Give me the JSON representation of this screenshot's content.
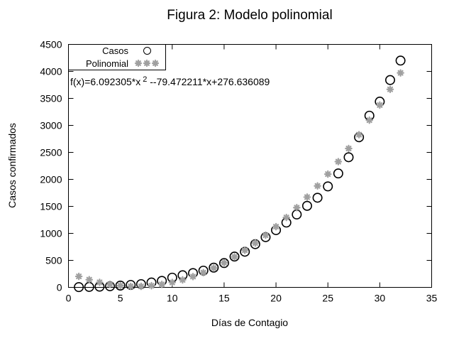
{
  "figure": {
    "title": "Figura 2: Modelo polinomial",
    "xlabel": "Días de Contagio",
    "ylabel": "Casos confirmados",
    "equation": {
      "prefix": "f(x)=6.092305*x",
      "sup": "2",
      "suffix": "--79.472211*x+276.636089"
    }
  },
  "legend": {
    "casos_label": "Casos",
    "polinomial_label": "Polinomial"
  },
  "colors": {
    "foreground": "#000000",
    "polinomial_marker": "#a0a0a0",
    "background": "#ffffff"
  },
  "chart_data": {
    "type": "scatter",
    "title": "Figura 2: Modelo polinomial",
    "xlabel": "Días de Contagio",
    "ylabel": "Casos confirmados",
    "annotation": "f(x)=6.092305*x^2 --79.472211*x+276.636089",
    "legend_position": "top-left",
    "grid": false,
    "xlim": [
      0,
      35
    ],
    "ylim": [
      0,
      4500
    ],
    "xticks": [
      0,
      5,
      10,
      15,
      20,
      25,
      30,
      35
    ],
    "yticks": [
      0,
      500,
      1000,
      1500,
      2000,
      2500,
      3000,
      3500,
      4000,
      4500
    ],
    "x": [
      1,
      2,
      3,
      4,
      5,
      6,
      7,
      8,
      9,
      10,
      11,
      12,
      13,
      14,
      15,
      16,
      17,
      18,
      19,
      20,
      21,
      22,
      23,
      24,
      25,
      26,
      27,
      28,
      29,
      30,
      31,
      32
    ],
    "series": [
      {
        "name": "Casos",
        "marker": "circle",
        "color": "#000000",
        "values": [
          5,
          8,
          13,
          20,
          33,
          45,
          60,
          90,
          120,
          180,
          225,
          265,
          310,
          365,
          450,
          570,
          660,
          800,
          930,
          1060,
          1200,
          1350,
          1510,
          1660,
          1870,
          2110,
          2410,
          2780,
          3180,
          3440,
          3840,
          4200
        ]
      },
      {
        "name": "Polinomial",
        "marker": "asterisk",
        "color": "#a0a0a0",
        "values": [
          203.3,
          142.1,
          93.1,
          56.2,
          31.6,
          19.1,
          18.9,
          30.8,
          54.9,
          91.1,
          139.6,
          200.3,
          273.1,
          358.1,
          455.3,
          564.7,
          686.3,
          820.0,
          966.0,
          1124.1,
          1294.4,
          1476.9,
          1671.6,
          1878.5,
          2097.5,
          2328.8,
          2572.2,
          2827.8,
          3095.6,
          3375.5,
          3667.7,
          3972.0
        ]
      }
    ]
  }
}
